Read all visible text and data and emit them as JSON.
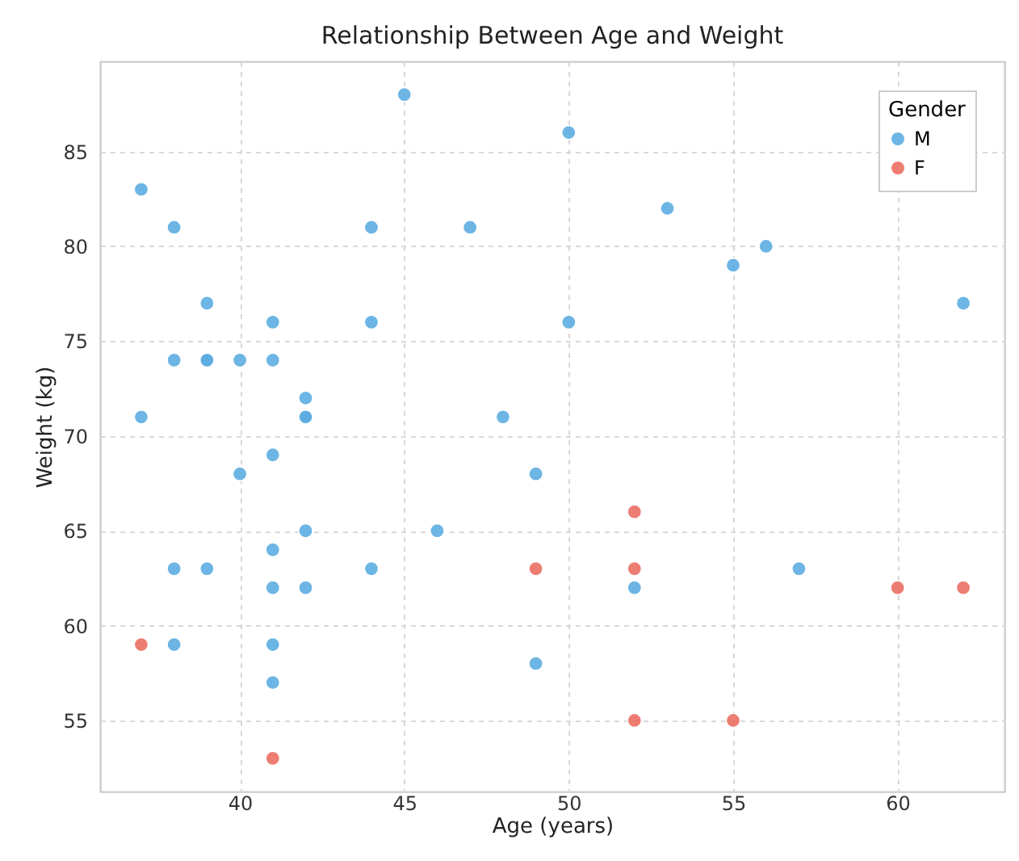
{
  "chart_data": {
    "type": "scatter",
    "title": "Relationship Between Age and Weight",
    "xlabel": "Age (years)",
    "ylabel": "Weight (kg)",
    "legend_title": "Gender",
    "legend": "top right",
    "grid": true,
    "marker": "circle",
    "xlim": [
      35.75,
      63.25
    ],
    "ylim": [
      51.25,
      89.75
    ],
    "xticks": [
      40,
      45,
      50,
      55,
      60
    ],
    "yticks": [
      55,
      60,
      65,
      70,
      75,
      80,
      85
    ],
    "series": [
      {
        "name": "M",
        "color": "#5dade2",
        "x": [
          45,
          50,
          37,
          38,
          44,
          47,
          53,
          55,
          56,
          62,
          39,
          41,
          44,
          50,
          38,
          39,
          39,
          40,
          41,
          42,
          42,
          42,
          37,
          48,
          41,
          40,
          49,
          42,
          46,
          41,
          38,
          39,
          44,
          57,
          41,
          42,
          52,
          38,
          41,
          49,
          41
        ],
        "values": [
          88,
          86,
          83,
          81,
          81,
          81,
          82,
          79,
          80,
          77,
          77,
          76,
          76,
          76,
          74,
          74,
          74,
          74,
          74,
          72,
          71,
          71,
          71,
          71,
          69,
          68,
          68,
          65,
          65,
          64,
          63,
          63,
          63,
          63,
          62,
          62,
          62,
          59,
          59,
          58,
          57
        ]
      },
      {
        "name": "F",
        "color": "#ec7063",
        "x": [
          37,
          41,
          49,
          52,
          52,
          52,
          55,
          60,
          62
        ],
        "values": [
          59,
          53,
          63,
          66,
          63,
          55,
          55,
          62,
          62
        ]
      }
    ]
  }
}
